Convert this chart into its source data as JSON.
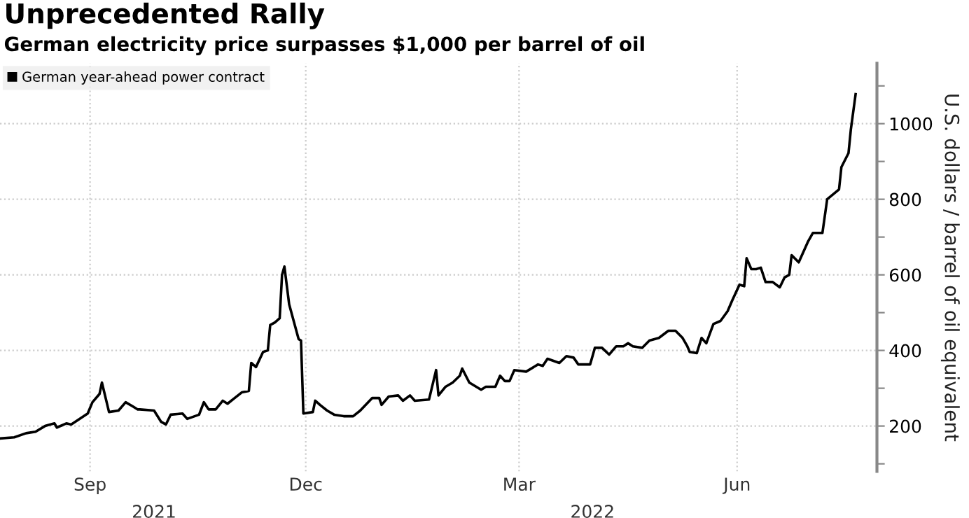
{
  "chart_data": {
    "type": "line",
    "title": "Unprecedented Rally",
    "subtitle": "German electricity price surpasses $1,000 per barrel of oil",
    "ylabel": "U.S. dollars / barrel of oil equivalent",
    "x": [
      "2021-07-25",
      "2021-07-31",
      "2021-08-05",
      "2021-08-09",
      "2021-08-13",
      "2021-08-17",
      "2021-08-18",
      "2021-08-22",
      "2021-08-24",
      "2021-08-31",
      "2021-09-02",
      "2021-09-05",
      "2021-09-06",
      "2021-09-09",
      "2021-09-13",
      "2021-09-16",
      "2021-09-19",
      "2021-09-21",
      "2021-09-22",
      "2021-09-28",
      "2021-10-01",
      "2021-10-03",
      "2021-10-05",
      "2021-10-10",
      "2021-10-12",
      "2021-10-17",
      "2021-10-19",
      "2021-10-21",
      "2021-10-24",
      "2021-10-27",
      "2021-10-29",
      "2021-11-01",
      "2021-11-04",
      "2021-11-07",
      "2021-11-08",
      "2021-11-10",
      "2021-11-13",
      "2021-11-15",
      "2021-11-16",
      "2021-11-18",
      "2021-11-20",
      "2021-11-21",
      "2021-11-22",
      "2021-11-24",
      "2021-11-28",
      "2021-11-29",
      "2021-11-30",
      "2021-12-04",
      "2021-12-05",
      "2021-12-07",
      "2021-12-10",
      "2021-12-13",
      "2021-12-17",
      "2021-12-21",
      "2021-12-24",
      "2021-12-29",
      "2022-01-01",
      "2022-01-02",
      "2022-01-05",
      "2022-01-09",
      "2022-01-11",
      "2022-01-14",
      "2022-01-16",
      "2022-01-22",
      "2022-01-25",
      "2022-01-26",
      "2022-01-29",
      "2022-02-01",
      "2022-02-04",
      "2022-02-05",
      "2022-02-08",
      "2022-02-13",
      "2022-02-15",
      "2022-02-19",
      "2022-02-21",
      "2022-02-23",
      "2022-02-25",
      "2022-02-27",
      "2022-03-04",
      "2022-03-09",
      "2022-03-11",
      "2022-03-13",
      "2022-03-18",
      "2022-03-21",
      "2022-03-24",
      "2022-03-26",
      "2022-03-31",
      "2022-04-02",
      "2022-04-05",
      "2022-04-08",
      "2022-04-11",
      "2022-04-14",
      "2022-04-16",
      "2022-04-18",
      "2022-04-22",
      "2022-04-25",
      "2022-04-29",
      "2022-05-03",
      "2022-05-06",
      "2022-05-09",
      "2022-05-11",
      "2022-05-12",
      "2022-05-15",
      "2022-05-17",
      "2022-05-19",
      "2022-05-22",
      "2022-05-25",
      "2022-05-28",
      "2022-05-30",
      "2022-06-02",
      "2022-06-04",
      "2022-06-05",
      "2022-06-07",
      "2022-06-09",
      "2022-06-11",
      "2022-06-13",
      "2022-06-16",
      "2022-06-19",
      "2022-06-21",
      "2022-06-23",
      "2022-06-24",
      "2022-06-27",
      "2022-07-01",
      "2022-07-03",
      "2022-07-07",
      "2022-07-09",
      "2022-07-14",
      "2022-07-15",
      "2022-07-18",
      "2022-07-19",
      "2022-07-21"
    ],
    "series": [
      {
        "name": "German year-ahead power contract",
        "color": "#000000",
        "values": [
          167,
          170,
          181,
          185,
          200,
          207,
          196,
          207,
          204,
          233,
          263,
          285,
          315,
          237,
          241,
          263,
          252,
          244,
          244,
          241,
          211,
          204,
          230,
          233,
          219,
          230,
          263,
          244,
          244,
          267,
          259,
          274,
          289,
          293,
          367,
          356,
          396,
          400,
          467,
          474,
          485,
          600,
          622,
          522,
          430,
          426,
          233,
          237,
          267,
          256,
          241,
          230,
          226,
          226,
          241,
          274,
          274,
          256,
          278,
          281,
          267,
          281,
          267,
          270,
          348,
          281,
          304,
          315,
          333,
          352,
          315,
          296,
          304,
          304,
          333,
          319,
          319,
          348,
          344,
          363,
          359,
          378,
          367,
          385,
          381,
          363,
          363,
          407,
          407,
          389,
          411,
          411,
          419,
          411,
          407,
          426,
          433,
          452,
          452,
          433,
          411,
          396,
          393,
          433,
          419,
          470,
          478,
          504,
          533,
          574,
          570,
          644,
          615,
          615,
          619,
          581,
          581,
          567,
          593,
          600,
          652,
          633,
          689,
          711,
          711,
          800,
          826,
          885,
          922,
          985,
          1078
        ]
      }
    ],
    "xlim": [
      "2021-07-25",
      "2022-07-30"
    ],
    "xticks": [
      {
        "value": "2021-09-01",
        "label": "Sep"
      },
      {
        "value": "2021-12-01",
        "label": "Dec"
      },
      {
        "value": "2022-03-01",
        "label": "Mar"
      },
      {
        "value": "2022-06-01",
        "label": "Jun"
      }
    ],
    "x2lim": [
      "2021-07-25",
      "2022-07-30"
    ],
    "x2ticks": [
      {
        "value": "2021-09-28",
        "label": "2021"
      },
      {
        "value": "2022-04-01",
        "label": "2022"
      }
    ],
    "ylim": [
      80,
      1160
    ],
    "yticks": [
      {
        "value": 100,
        "label": null
      },
      200,
      {
        "value": 300,
        "label": null
      },
      400,
      {
        "value": 500,
        "label": null
      },
      600,
      {
        "value": 700,
        "label": null
      },
      800,
      {
        "value": 900,
        "label": null
      },
      1000,
      {
        "value": 1100,
        "label": null
      }
    ],
    "grid": true,
    "legend": "top left",
    "marker": "none",
    "line_style": "solid"
  }
}
